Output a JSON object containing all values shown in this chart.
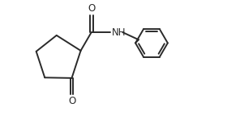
{
  "bg_color": "#ffffff",
  "line_color": "#2a2a2a",
  "line_width": 1.4,
  "font_size": 8.5,
  "fig_width": 2.8,
  "fig_height": 1.44,
  "dpi": 100,
  "xlim": [
    0,
    10
  ],
  "ylim": [
    0,
    5.14
  ]
}
